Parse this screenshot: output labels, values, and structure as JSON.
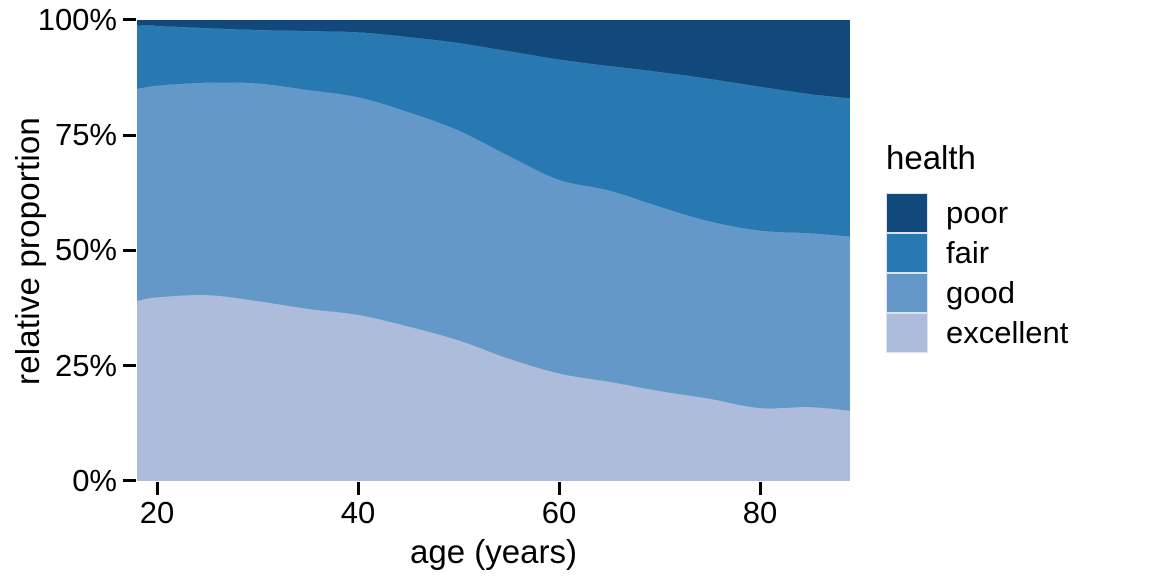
{
  "chart_data": {
    "type": "area",
    "stacked": true,
    "normalized_percent": true,
    "title": "",
    "xlabel": "age (years)",
    "ylabel": "relative proportion",
    "xlim": [
      18,
      89
    ],
    "ylim": [
      0,
      100
    ],
    "grid": false,
    "legend_position": "right",
    "x": [
      18,
      20,
      25,
      30,
      35,
      40,
      45,
      50,
      55,
      60,
      65,
      70,
      75,
      80,
      85,
      89
    ],
    "series": [
      {
        "name": "excellent",
        "color": "#aebcdc",
        "values": [
          39.0,
          39.8,
          40.3,
          39.0,
          37.3,
          36.0,
          33.5,
          30.5,
          26.5,
          23.3,
          21.5,
          19.5,
          17.8,
          15.8,
          16.0,
          15.2
        ]
      },
      {
        "name": "good",
        "color": "#6398c8",
        "values": [
          46.0,
          45.9,
          46.1,
          47.2,
          47.5,
          47.2,
          46.5,
          45.5,
          44.0,
          42.0,
          41.5,
          40.0,
          38.5,
          38.5,
          37.7,
          37.8
        ]
      },
      {
        "name": "fair",
        "color": "#2878b2",
        "values": [
          13.8,
          13.0,
          11.8,
          11.6,
          12.8,
          14.1,
          16.3,
          19.0,
          22.7,
          26.1,
          27.0,
          29.2,
          30.9,
          31.2,
          30.2,
          30.0
        ]
      },
      {
        "name": "poor",
        "color": "#11497d",
        "values": [
          1.2,
          1.3,
          1.8,
          2.2,
          2.4,
          2.7,
          3.7,
          5.0,
          6.8,
          8.6,
          10.0,
          11.3,
          12.8,
          14.5,
          16.1,
          17.0
        ]
      }
    ],
    "x_ticks": [
      {
        "value": 20,
        "label": "20"
      },
      {
        "value": 40,
        "label": "40"
      },
      {
        "value": 60,
        "label": "60"
      },
      {
        "value": 80,
        "label": "80"
      }
    ],
    "y_ticks": [
      {
        "value": 0,
        "label": "0%"
      },
      {
        "value": 25,
        "label": "25%"
      },
      {
        "value": 50,
        "label": "50%"
      },
      {
        "value": 75,
        "label": "75%"
      },
      {
        "value": 100,
        "label": "100%"
      }
    ]
  },
  "legend": {
    "title": "health",
    "entries": [
      {
        "label": "poor",
        "color": "#11497d"
      },
      {
        "label": "fair",
        "color": "#2878b2"
      },
      {
        "label": "good",
        "color": "#6398c8"
      },
      {
        "label": "excellent",
        "color": "#aebcdc"
      }
    ]
  }
}
